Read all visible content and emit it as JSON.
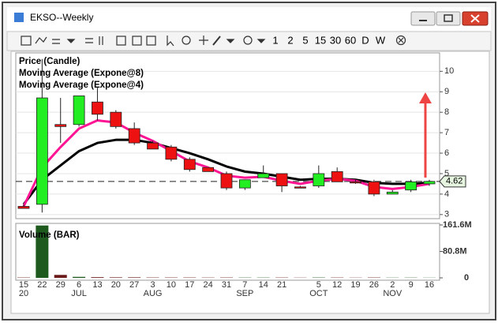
{
  "window": {
    "title": "EKSO--Weekly",
    "toolbar": {
      "intervals": [
        "1",
        "2",
        "5",
        "15",
        "30",
        "60",
        "D",
        "W"
      ]
    }
  },
  "chart_data": {
    "type": "candlestick",
    "categories": [
      "15",
      "22",
      "29",
      "6",
      "13",
      "20",
      "27",
      "3",
      "10",
      "17",
      "24",
      "31",
      "7",
      "14",
      "21",
      null,
      "5",
      "12",
      "19",
      "26",
      "2",
      "9",
      "16"
    ],
    "groups": [
      "20",
      null,
      null,
      "JUL",
      null,
      null,
      null,
      "AUG",
      null,
      null,
      null,
      null,
      "SEP",
      null,
      null,
      null,
      "OCT",
      null,
      null,
      null,
      "NOV",
      null,
      null
    ],
    "price": {
      "name": "Price (Candle)",
      "color": "#0000cc",
      "up_color": "#22ee22",
      "down_color": "#ee1111",
      "open": [
        3.4,
        3.5,
        7.4,
        7.4,
        8.5,
        8.0,
        7.2,
        6.5,
        6.3,
        5.7,
        5.3,
        5.0,
        4.3,
        4.8,
        5.0,
        4.35,
        4.4,
        5.1,
        4.6,
        4.6,
        4.0,
        4.2,
        4.5
      ],
      "high": [
        3.5,
        10.6,
        8.7,
        8.8,
        9.2,
        8.1,
        7.5,
        6.6,
        6.4,
        5.8,
        5.3,
        5.1,
        4.7,
        5.4,
        5.0,
        4.4,
        5.4,
        5.3,
        4.7,
        4.7,
        4.2,
        4.7,
        4.7
      ],
      "low": [
        3.3,
        3.1,
        6.5,
        7.3,
        7.6,
        7.2,
        6.4,
        6.2,
        5.6,
        5.1,
        5.1,
        4.2,
        4.2,
        4.8,
        4.1,
        4.3,
        4.3,
        4.6,
        4.5,
        3.9,
        4.0,
        4.1,
        4.4
      ],
      "close": [
        3.3,
        8.7,
        7.3,
        8.8,
        7.9,
        7.3,
        6.5,
        6.2,
        5.7,
        5.2,
        5.1,
        4.3,
        4.7,
        5.0,
        4.4,
        4.3,
        5.0,
        4.6,
        4.55,
        4.0,
        4.1,
        4.6,
        4.62
      ]
    },
    "series": [
      {
        "name": "Moving Average (Expone@8)",
        "color": "#000000",
        "values": [
          3.5,
          4.7,
          5.4,
          6.1,
          6.5,
          6.65,
          6.65,
          6.5,
          6.25,
          6.0,
          5.7,
          5.35,
          5.1,
          5.0,
          4.85,
          4.7,
          4.75,
          4.75,
          4.7,
          4.55,
          4.5,
          4.5,
          4.55
        ]
      },
      {
        "name": "Moving Average (Expone@4)",
        "color": "#ff1493",
        "values": [
          3.4,
          5.3,
          6.3,
          7.2,
          7.6,
          7.5,
          7.0,
          6.6,
          6.1,
          5.6,
          5.3,
          4.9,
          4.8,
          4.85,
          4.65,
          4.5,
          4.65,
          4.75,
          4.65,
          4.35,
          4.25,
          4.35,
          4.5
        ]
      }
    ],
    "last_price": 4.62,
    "ylim": [
      2.8,
      10.9
    ],
    "yticks": [
      3,
      4,
      5,
      6,
      7,
      8,
      9,
      10
    ],
    "grid": true,
    "volume": {
      "name": "Volume (BAR)",
      "color": "#888888",
      "up_color": "#1e5a1e",
      "down_color": "#6b1a1a",
      "values": [
        1000000,
        160000000,
        9000000,
        3000000,
        2000000,
        1500000,
        1500000,
        1000000,
        1000000,
        1000000,
        800000,
        1000000,
        800000,
        800000,
        900000,
        600000,
        1000000,
        900000,
        600000,
        1000000,
        600000,
        700000,
        500000
      ],
      "ylim": [
        0,
        161600000
      ],
      "yticks": [
        0,
        {
          "value": 80800000,
          "label": "80.8M"
        },
        {
          "value": 161600000,
          "label": "161.6M"
        }
      ]
    }
  }
}
